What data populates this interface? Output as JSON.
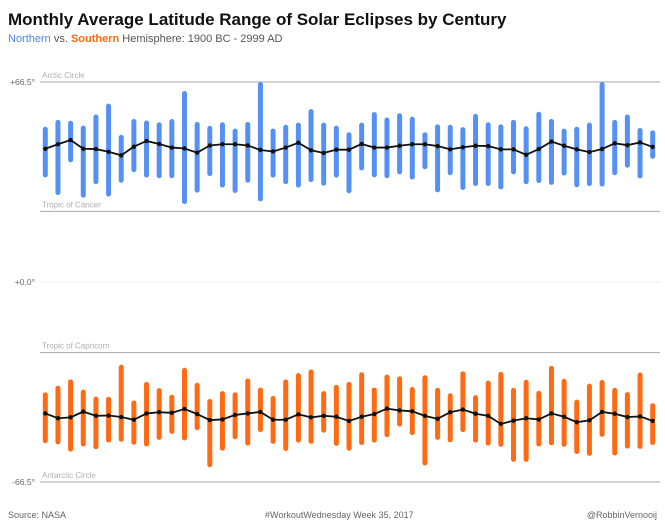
{
  "title": "Monthly Average Latitude Range of Solar Eclipses by Century",
  "subtitle": {
    "northern": "Northern",
    "vs": " vs. ",
    "southern": "Southern",
    "rest": " Hemisphere: 1900 BC - 2999 AD"
  },
  "footer": {
    "source": "Source: NASA",
    "center": "#WorkoutWednesday Week 35, 2017",
    "author": "@RobbinVernooij"
  },
  "colors": {
    "northern": "#5591f5",
    "southern": "#ff6a13",
    "average_line": "#111111"
  },
  "chart_data": {
    "type": "range-bar with line",
    "ylim": [
      -66.5,
      66.5
    ],
    "y_ticks": [
      "+66.5°",
      "+0.0°",
      "-66.5°"
    ],
    "y_tick_values": [
      66.5,
      0,
      -66.5
    ],
    "reference_lines": [
      {
        "label": "Arctic Circle",
        "value": 66.5
      },
      {
        "label": "Tropic of Cancer",
        "value": 23.5
      },
      {
        "label": "Tropic of Capricorn",
        "value": -23.5
      },
      {
        "label": "Antarctic Circle",
        "value": -66.5
      }
    ],
    "series": [
      {
        "hemisphere": "Northern",
        "max": [
          51.6,
          53.9,
          53.6,
          52.0,
          55.7,
          59.3,
          48.9,
          54.2,
          53.7,
          53.1,
          54.2,
          63.5,
          53.2,
          51.9,
          53.1,
          51.0,
          53.2,
          66.5,
          51.0,
          52.3,
          53.0,
          57.5,
          53.0,
          52.0,
          49.8,
          53.0,
          56.5,
          54.7,
          56.1,
          55.0,
          49.8,
          52.4,
          52.3,
          51.5,
          55.9,
          53.1,
          52.4,
          53.9,
          51.8,
          56.6,
          54.2,
          51.0,
          51.6,
          53.0,
          66.5,
          53.9,
          55.7,
          51.2,
          50.4
        ],
        "min": [
          34.8,
          28.9,
          39.8,
          28.0,
          32.5,
          28.4,
          33.0,
          36.5,
          34.7,
          34.5,
          34.5,
          25.9,
          29.7,
          35.2,
          31.4,
          29.6,
          33.0,
          26.8,
          34.7,
          32.5,
          31.4,
          33.2,
          32.0,
          34.7,
          29.5,
          37.1,
          34.8,
          34.5,
          35.8,
          34.1,
          37.5,
          29.8,
          35.5,
          30.6,
          31.9,
          31.9,
          30.8,
          35.8,
          32.5,
          32.9,
          32.3,
          35.4,
          31.5,
          31.9,
          31.7,
          35.5,
          38.0,
          34.4,
          41.0
        ],
        "avg": [
          44.3,
          45.8,
          47.2,
          44.3,
          44.2,
          43.3,
          42.1,
          45.0,
          46.9,
          45.9,
          44.7,
          44.4,
          43.0,
          45.4,
          45.8,
          45.8,
          45.4,
          43.9,
          43.4,
          44.7,
          46.3,
          43.8,
          42.9,
          44.0,
          44.0,
          45.9,
          44.7,
          44.7,
          45.3,
          45.8,
          45.8,
          45.2,
          44.1,
          44.8,
          45.3,
          45.2,
          44.1,
          44.1,
          42.3,
          44.2,
          46.7,
          45.3,
          44.1,
          43.2,
          44.2,
          46.1,
          45.5,
          46.4,
          44.9
        ]
      },
      {
        "hemisphere": "Southern",
        "max": [
          -36.7,
          -34.5,
          -32.4,
          -35.8,
          -38.1,
          -38.2,
          -27.5,
          -39.4,
          -33.2,
          -35.3,
          -37.5,
          -28.5,
          -33.5,
          -38.9,
          -36.3,
          -36.7,
          -32.1,
          -35.1,
          -37.9,
          -32.4,
          -30.3,
          -29.1,
          -36.3,
          -34.2,
          -33.2,
          -30.0,
          -35.1,
          -30.8,
          -31.4,
          -34.9,
          -31.0,
          -35.2,
          -37.0,
          -29.7,
          -37.6,
          -32.8,
          -29.9,
          -35.2,
          -32.5,
          -36.2,
          -27.9,
          -32.2,
          -39.1,
          -33.8,
          -32.6,
          -35.2,
          -36.6,
          -30.1,
          -40.3
        ],
        "min": [
          -53.6,
          -54.0,
          -56.4,
          -54.7,
          -55.6,
          -53.4,
          -53.1,
          -54.1,
          -54.7,
          -52.5,
          -50.5,
          -52.7,
          -49.3,
          -61.6,
          -56.1,
          -52.3,
          -54.4,
          -49.9,
          -53.8,
          -56.2,
          -53.4,
          -53.8,
          -50.1,
          -54.5,
          -56.1,
          -54.2,
          -53.4,
          -51.6,
          -48.1,
          -50.9,
          -61.0,
          -52.5,
          -53.3,
          -49.9,
          -53.4,
          -54.4,
          -54.8,
          -59.8,
          -59.8,
          -54.7,
          -54.3,
          -54.8,
          -57.2,
          -57.8,
          -51.5,
          -57.7,
          -55.4,
          -55.5,
          -54.2
        ],
        "avg": [
          -43.7,
          -45.3,
          -45.0,
          -43.1,
          -44.5,
          -44.4,
          -44.9,
          -45.8,
          -43.7,
          -43.3,
          -43.5,
          -42.2,
          -43.9,
          -45.9,
          -45.7,
          -44.2,
          -43.7,
          -43.2,
          -45.8,
          -45.8,
          -44.0,
          -45.0,
          -44.5,
          -44.8,
          -46.2,
          -44.8,
          -43.9,
          -42.1,
          -42.7,
          -43.0,
          -44.5,
          -45.5,
          -43.3,
          -42.4,
          -43.8,
          -44.5,
          -47.2,
          -46.1,
          -45.3,
          -45.7,
          -43.7,
          -44.8,
          -46.6,
          -46.0,
          -43.2,
          -43.8,
          -44.9,
          -44.7,
          -46.2
        ]
      }
    ]
  }
}
